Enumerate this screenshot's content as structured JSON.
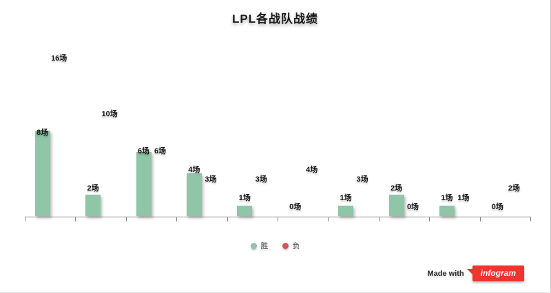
{
  "chart_data": {
    "type": "bar",
    "title": "LPL各战队战绩",
    "value_suffix": "场",
    "categories": [
      "",
      "",
      "",
      "",
      "",
      "",
      "",
      "",
      "",
      ""
    ],
    "series": [
      {
        "name": "胜",
        "color": "#8ec6a7",
        "values": [
          8,
          2,
          6,
          4,
          1,
          0,
          1,
          2,
          1,
          0
        ],
        "bars_visible": true
      },
      {
        "name": "负",
        "color": "#d9534f",
        "values": [
          16,
          10,
          6,
          3,
          3,
          4,
          3,
          0,
          1,
          2
        ],
        "bars_visible": false
      }
    ],
    "ylim": [
      0,
      17
    ],
    "grid": false,
    "legend_position": "bottom",
    "x_axis_labels_visible": false
  },
  "footer": {
    "made_with": "Made with",
    "brand": "infogram",
    "brand_color": "#ee352e"
  }
}
